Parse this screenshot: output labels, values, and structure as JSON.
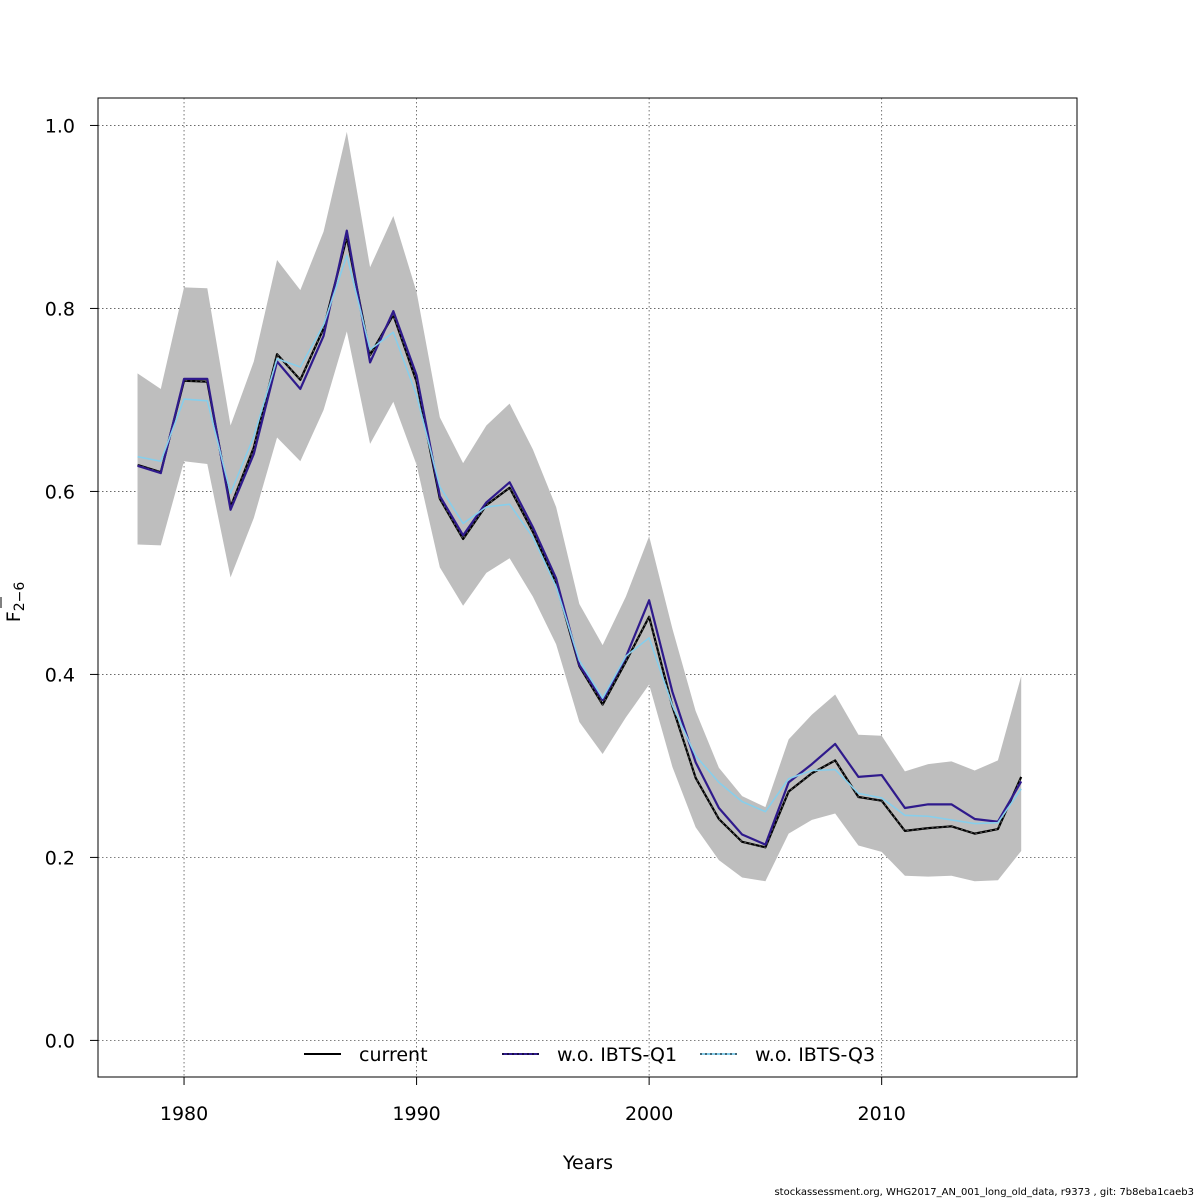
{
  "chart_data": {
    "type": "line",
    "title": "",
    "xlabel": "Years",
    "ylabel_main": "F",
    "ylabel_sub": "2−6",
    "xlim": [
      1976.3,
      2018.4
    ],
    "ylim": [
      -0.04,
      1.03
    ],
    "xticks": [
      1980,
      1990,
      2000,
      2010
    ],
    "yticks": [
      0.0,
      0.2,
      0.4,
      0.6,
      0.8,
      1.0
    ],
    "ytick_labels": [
      "0.0",
      "0.2",
      "0.4",
      "0.6",
      "0.8",
      "1.0"
    ],
    "grid": true,
    "legend_position": "bottom",
    "x": [
      1978,
      1979,
      1980,
      1981,
      1982,
      1983,
      1984,
      1985,
      1986,
      1987,
      1988,
      1989,
      1990,
      1991,
      1992,
      1993,
      1994,
      1995,
      1996,
      1997,
      1998,
      1999,
      2000,
      2001,
      2002,
      2003,
      2004,
      2005,
      2006,
      2007,
      2008,
      2009,
      2010,
      2011,
      2012,
      2013,
      2014,
      2015,
      2016
    ],
    "confidence_band": {
      "name": "current",
      "upper": [
        0.729,
        0.712,
        0.823,
        0.822,
        0.672,
        0.742,
        0.853,
        0.82,
        0.884,
        0.993,
        0.845,
        0.901,
        0.818,
        0.681,
        0.631,
        0.672,
        0.696,
        0.646,
        0.583,
        0.477,
        0.432,
        0.485,
        0.551,
        0.45,
        0.36,
        0.298,
        0.267,
        0.255,
        0.329,
        0.356,
        0.378,
        0.334,
        0.333,
        0.294,
        0.302,
        0.305,
        0.295,
        0.306,
        0.398
      ],
      "lower": [
        0.542,
        0.541,
        0.633,
        0.63,
        0.506,
        0.571,
        0.659,
        0.633,
        0.689,
        0.775,
        0.652,
        0.698,
        0.629,
        0.517,
        0.475,
        0.511,
        0.527,
        0.485,
        0.433,
        0.348,
        0.313,
        0.353,
        0.389,
        0.299,
        0.233,
        0.197,
        0.178,
        0.174,
        0.226,
        0.241,
        0.248,
        0.213,
        0.206,
        0.18,
        0.179,
        0.18,
        0.174,
        0.175,
        0.207
      ],
      "color": "#bebebe"
    },
    "series": [
      {
        "name": "current",
        "color": "#000000",
        "style": "solid",
        "values": [
          0.629,
          0.621,
          0.721,
          0.72,
          0.583,
          0.648,
          0.75,
          0.722,
          0.778,
          0.878,
          0.749,
          0.793,
          0.72,
          0.592,
          0.548,
          0.585,
          0.604,
          0.556,
          0.5,
          0.409,
          0.367,
          0.414,
          0.463,
          0.365,
          0.287,
          0.242,
          0.217,
          0.211,
          0.272,
          0.292,
          0.306,
          0.266,
          0.262,
          0.229,
          0.232,
          0.234,
          0.226,
          0.231,
          0.288
        ]
      },
      {
        "name": "w.o. IBTS-Q1",
        "color": "#2f1a8c",
        "style": "solid",
        "values": [
          0.628,
          0.62,
          0.723,
          0.723,
          0.58,
          0.641,
          0.742,
          0.712,
          0.77,
          0.885,
          0.741,
          0.797,
          0.727,
          0.595,
          0.552,
          0.588,
          0.61,
          0.561,
          0.505,
          0.41,
          0.372,
          0.419,
          0.481,
          0.381,
          0.304,
          0.254,
          0.225,
          0.214,
          0.282,
          0.302,
          0.324,
          0.288,
          0.29,
          0.254,
          0.258,
          0.258,
          0.242,
          0.239,
          0.283
        ]
      },
      {
        "name": "w.o. IBTS-Q3",
        "color": "#87ceeb",
        "style": "dotted",
        "values": [
          0.638,
          0.633,
          0.701,
          0.699,
          0.598,
          0.66,
          0.745,
          0.736,
          0.782,
          0.858,
          0.755,
          0.774,
          0.705,
          0.605,
          0.565,
          0.583,
          0.586,
          0.55,
          0.496,
          0.415,
          0.374,
          0.42,
          0.44,
          0.366,
          0.311,
          0.282,
          0.261,
          0.25,
          0.286,
          0.295,
          0.296,
          0.27,
          0.265,
          0.246,
          0.245,
          0.241,
          0.237,
          0.238,
          0.275
        ]
      }
    ]
  },
  "footer_text": "stockassessment.org, WHG2017_AN_001_long_old_data, r9373 , git: 7b8eba1caeb3"
}
